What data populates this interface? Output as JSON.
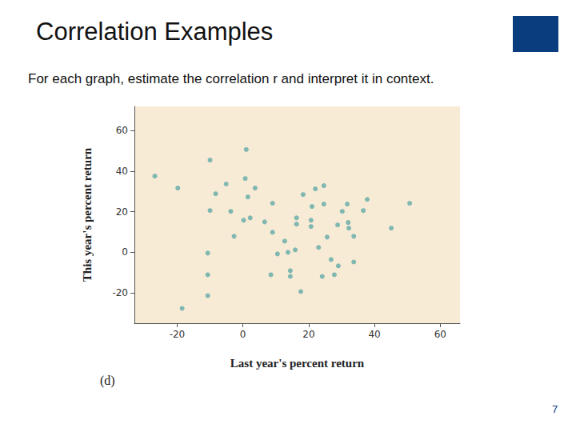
{
  "slide": {
    "title": "Correlation Examples",
    "instruction": "For each graph, estimate the correlation r and interpret it in context.",
    "page_number": 7
  },
  "chart_data": {
    "type": "scatter",
    "x_label": "Last year's percent return",
    "y_label": "This year's percent return",
    "annotations": [
      "(d)"
    ],
    "x": [
      -26.8,
      -19.8,
      -18.5,
      -10.0,
      -10.0,
      -10.7,
      -10.7,
      -10.7,
      -8.3,
      -5.1,
      -3.7,
      -2.7,
      1.0,
      0.7,
      1.5,
      3.7,
      0.2,
      2.2,
      6.6,
      9.0,
      9.0,
      8.5,
      10.5,
      12.7,
      13.7,
      14.4,
      14.4,
      15.9,
      16.3,
      16.3,
      18.3,
      17.6,
      20.7,
      20.7,
      21.0,
      22.0,
      23.0,
      24.6,
      24.6,
      24.1,
      25.6,
      26.8,
      27.8,
      28.8,
      29.0,
      30.2,
      31.7,
      32.0,
      32.2,
      33.7,
      33.7,
      36.6,
      37.8,
      45.1,
      50.7
    ],
    "values": [
      37.6,
      31.7,
      -27.7,
      45.5,
      20.6,
      -0.4,
      -11.1,
      -21.4,
      28.9,
      33.7,
      20.2,
      7.9,
      50.7,
      36.4,
      27.3,
      31.7,
      15.8,
      17.0,
      15.0,
      24.2,
      9.9,
      -11.1,
      -0.8,
      5.5,
      0.0,
      -9.1,
      -11.9,
      1.2,
      17.0,
      13.9,
      28.5,
      -19.4,
      15.8,
      12.7,
      22.6,
      31.3,
      2.4,
      32.9,
      23.8,
      -11.9,
      7.5,
      -3.6,
      -11.1,
      13.5,
      -6.7,
      20.2,
      23.8,
      14.7,
      11.9,
      7.9,
      -4.8,
      20.6,
      26.1,
      11.9,
      24.2
    ],
    "color": "#62aaa7",
    "marker": "circle",
    "xlim": [
      -33,
      66
    ],
    "xticks": [
      -20,
      0,
      20,
      40,
      60
    ],
    "ylim": [
      -35,
      72
    ],
    "yticks": [
      -20,
      0,
      20,
      40,
      60
    ],
    "grid": false
  }
}
